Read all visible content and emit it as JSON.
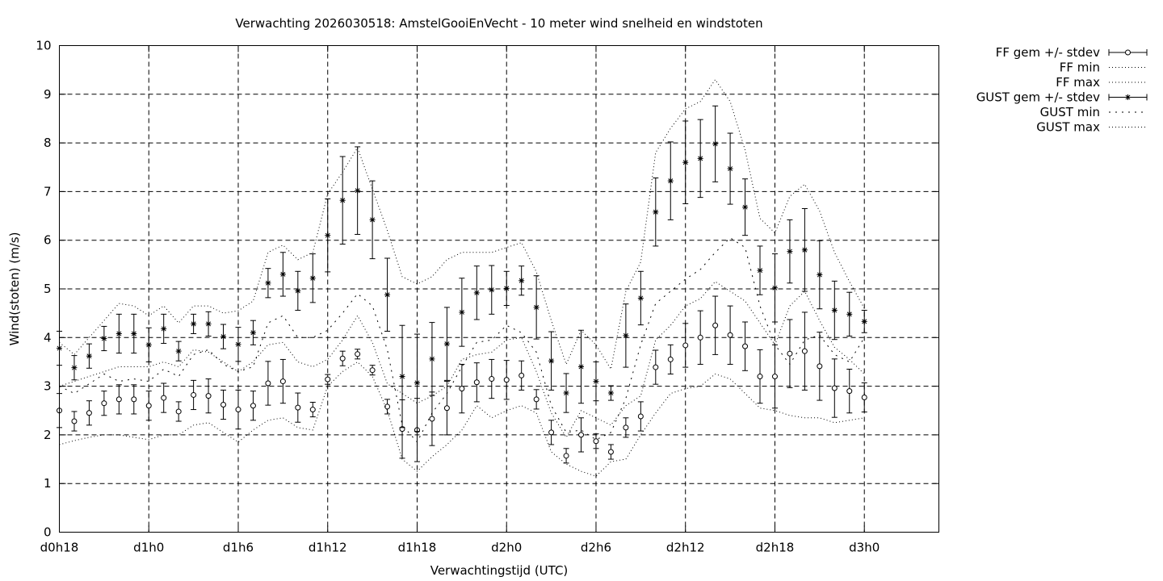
{
  "chart_data": {
    "type": "line",
    "title": "Verwachting 2026030518: AmstelGooiEnVecht - 10 meter wind snelheid en windstoten",
    "xlabel": "Verwachtingstijd (UTC)",
    "ylabel": "Wind(stoten) (m/s)",
    "ylim": [
      0,
      10
    ],
    "yticks": [
      "0",
      "1",
      "2",
      "3",
      "4",
      "5",
      "6",
      "7",
      "8",
      "9",
      "10"
    ],
    "xlim": [
      18,
      77
    ],
    "xticks": [
      {
        "x": 18,
        "label": "d0h18"
      },
      {
        "x": 24,
        "label": "d1h0"
      },
      {
        "x": 30,
        "label": "d1h6"
      },
      {
        "x": 36,
        "label": "d1h12"
      },
      {
        "x": 42,
        "label": "d1h18"
      },
      {
        "x": 48,
        "label": "d2h0"
      },
      {
        "x": 54,
        "label": "d2h6"
      },
      {
        "x": 60,
        "label": "d2h12"
      },
      {
        "x": 66,
        "label": "d2h18"
      },
      {
        "x": 72,
        "label": "d3h0"
      }
    ],
    "grid": true,
    "legend_position": "outside-top-right",
    "x": [
      18,
      19,
      20,
      21,
      22,
      23,
      24,
      25,
      26,
      27,
      28,
      29,
      30,
      31,
      32,
      33,
      34,
      35,
      36,
      37,
      38,
      39,
      40,
      41,
      42,
      43,
      44,
      45,
      46,
      47,
      48,
      49,
      50,
      51,
      52,
      53,
      54,
      55,
      56,
      57,
      58,
      59,
      60,
      61,
      62,
      63,
      64,
      65,
      66,
      67,
      68,
      69,
      70,
      71,
      72
    ],
    "series": [
      {
        "name": "FF gem +/- stdev",
        "style": "errorbar-circle",
        "values": [
          2.5,
          2.28,
          2.45,
          2.65,
          2.73,
          2.73,
          2.6,
          2.76,
          2.48,
          2.82,
          2.8,
          2.62,
          2.52,
          2.6,
          3.06,
          3.1,
          2.56,
          2.52,
          3.14,
          3.57,
          3.66,
          3.33,
          2.58,
          2.12,
          2.1,
          2.33,
          2.55,
          2.95,
          3.08,
          3.15,
          3.13,
          3.22,
          2.73,
          2.05,
          1.57,
          2.0,
          1.87,
          1.65,
          2.15,
          2.38,
          3.39,
          3.55,
          3.84,
          4.0,
          4.25,
          4.05,
          3.82,
          3.2,
          3.2,
          3.67,
          3.72,
          3.41,
          2.96,
          2.9,
          2.77
        ],
        "err": [
          0.35,
          0.2,
          0.25,
          0.25,
          0.3,
          0.3,
          0.3,
          0.3,
          0.2,
          0.3,
          0.35,
          0.3,
          0.4,
          0.3,
          0.45,
          0.45,
          0.3,
          0.15,
          0.1,
          0.15,
          0.1,
          0.1,
          0.15,
          0.6,
          0.65,
          0.55,
          0.55,
          0.5,
          0.4,
          0.4,
          0.4,
          0.3,
          0.2,
          0.25,
          0.15,
          0.35,
          0.15,
          0.15,
          0.2,
          0.3,
          0.35,
          0.3,
          0.45,
          0.55,
          0.6,
          0.6,
          0.5,
          0.55,
          0.65,
          0.7,
          0.8,
          0.7,
          0.6,
          0.45,
          0.3
        ]
      },
      {
        "name": "FF min",
        "style": "dotted-fine",
        "values": [
          1.8,
          1.88,
          1.95,
          2.0,
          2.0,
          1.95,
          1.9,
          2.0,
          2.0,
          2.2,
          2.25,
          2.05,
          1.85,
          2.1,
          2.3,
          2.35,
          2.15,
          2.1,
          3.0,
          3.3,
          3.5,
          3.2,
          2.5,
          1.5,
          1.25,
          1.55,
          1.8,
          2.1,
          2.6,
          2.35,
          2.5,
          2.6,
          2.45,
          1.65,
          1.4,
          1.25,
          1.15,
          1.45,
          1.5,
          2.0,
          2.45,
          2.85,
          2.95,
          3.0,
          3.25,
          3.15,
          2.85,
          2.55,
          2.5,
          2.4,
          2.35,
          2.35,
          2.25,
          2.3,
          2.35
        ]
      },
      {
        "name": "FF max",
        "style": "dotted-fine",
        "values": [
          3.0,
          3.1,
          3.2,
          3.3,
          3.4,
          3.4,
          3.4,
          3.5,
          3.4,
          3.75,
          3.7,
          3.5,
          3.3,
          3.5,
          3.85,
          3.9,
          3.5,
          3.4,
          3.55,
          3.95,
          4.45,
          3.9,
          3.05,
          2.85,
          2.65,
          2.8,
          3.0,
          3.55,
          3.65,
          3.7,
          3.95,
          4.0,
          3.3,
          2.45,
          1.95,
          2.5,
          2.35,
          2.2,
          2.6,
          2.8,
          3.95,
          4.25,
          4.65,
          4.8,
          5.15,
          4.95,
          4.75,
          4.3,
          3.85,
          4.65,
          4.95,
          4.35,
          3.8,
          3.55,
          3.25
        ]
      },
      {
        "name": "GUST gem +/- stdev",
        "style": "errorbar-star",
        "values": [
          3.78,
          3.38,
          3.62,
          3.98,
          4.08,
          4.08,
          3.85,
          4.18,
          3.72,
          4.28,
          4.28,
          4.02,
          3.86,
          4.1,
          5.12,
          5.3,
          4.96,
          5.22,
          6.1,
          6.82,
          7.02,
          6.42,
          4.88,
          3.2,
          3.07,
          3.56,
          3.87,
          4.52,
          4.92,
          4.98,
          5.01,
          5.17,
          4.62,
          3.52,
          2.86,
          3.4,
          3.1,
          2.86,
          4.04,
          4.81,
          6.58,
          7.22,
          7.6,
          7.68,
          7.98,
          7.47,
          6.68,
          5.38,
          5.02,
          5.77,
          5.8,
          5.29,
          4.56,
          4.48,
          4.33
        ],
        "err": [
          0.35,
          0.25,
          0.25,
          0.25,
          0.4,
          0.4,
          0.35,
          0.3,
          0.2,
          0.2,
          0.25,
          0.25,
          0.35,
          0.25,
          0.3,
          0.45,
          0.4,
          0.5,
          0.75,
          0.9,
          0.9,
          0.8,
          0.75,
          1.05,
          1.0,
          0.75,
          0.75,
          0.7,
          0.55,
          0.5,
          0.35,
          0.3,
          0.65,
          0.6,
          0.4,
          0.75,
          0.4,
          0.15,
          0.65,
          0.55,
          0.7,
          0.8,
          0.85,
          0.8,
          0.78,
          0.73,
          0.58,
          0.5,
          0.7,
          0.65,
          0.85,
          0.7,
          0.6,
          0.45,
          0.23
        ]
      },
      {
        "name": "GUST min",
        "style": "dotted-coarse",
        "values": [
          3.0,
          2.85,
          3.05,
          3.25,
          3.1,
          3.15,
          3.1,
          3.35,
          3.2,
          3.65,
          3.75,
          3.45,
          3.3,
          3.4,
          4.3,
          4.45,
          4.0,
          4.0,
          4.15,
          4.5,
          4.9,
          4.65,
          3.75,
          2.2,
          1.85,
          2.45,
          2.85,
          3.4,
          3.9,
          3.95,
          4.25,
          4.1,
          3.7,
          2.6,
          2.05,
          2.1,
          1.9,
          2.05,
          2.75,
          3.85,
          4.7,
          4.95,
          5.2,
          5.4,
          5.75,
          6.05,
          5.85,
          4.65,
          3.85,
          3.45,
          3.95,
          4.05,
          3.65,
          3.5,
          4.0
        ]
      },
      {
        "name": "GUST max",
        "style": "dotted-fine",
        "values": [
          3.9,
          3.65,
          4.0,
          4.35,
          4.7,
          4.65,
          4.45,
          4.65,
          4.3,
          4.65,
          4.65,
          4.5,
          4.55,
          4.75,
          5.75,
          5.9,
          5.6,
          5.75,
          6.95,
          7.4,
          7.9,
          7.05,
          6.2,
          5.25,
          5.1,
          5.25,
          5.6,
          5.75,
          5.75,
          5.75,
          5.85,
          5.95,
          5.35,
          4.35,
          3.45,
          4.15,
          3.85,
          3.35,
          4.95,
          5.55,
          7.8,
          8.3,
          8.7,
          8.85,
          9.3,
          8.85,
          7.85,
          6.45,
          6.15,
          6.9,
          7.15,
          6.6,
          5.75,
          5.15,
          4.6
        ]
      }
    ]
  }
}
